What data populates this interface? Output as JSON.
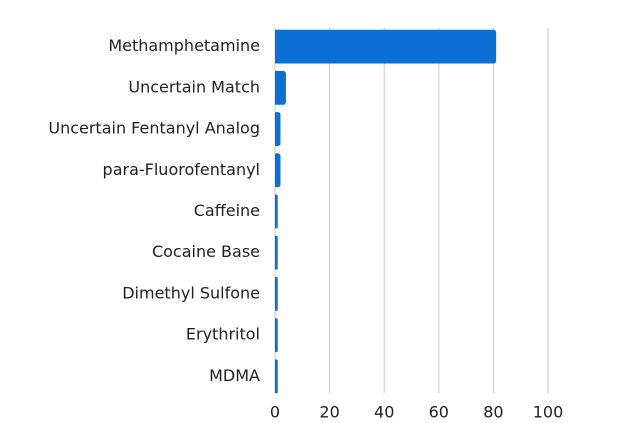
{
  "chart_data": {
    "type": "bar",
    "orientation": "horizontal",
    "categories": [
      "Methamphetamine",
      "Uncertain Match",
      "Uncertain Fentanyl Analog",
      "para-Fluorofentanyl",
      "Caffeine",
      "Cocaine Base",
      "Dimethyl Sulfone",
      "Erythritol",
      "MDMA"
    ],
    "values": [
      81,
      4,
      2,
      2,
      1,
      1,
      1,
      1,
      1
    ],
    "color": "#0b6fd4",
    "xlim": [
      0,
      100
    ],
    "xticks": [
      0,
      20,
      40,
      60,
      80,
      100
    ],
    "grid": true
  }
}
